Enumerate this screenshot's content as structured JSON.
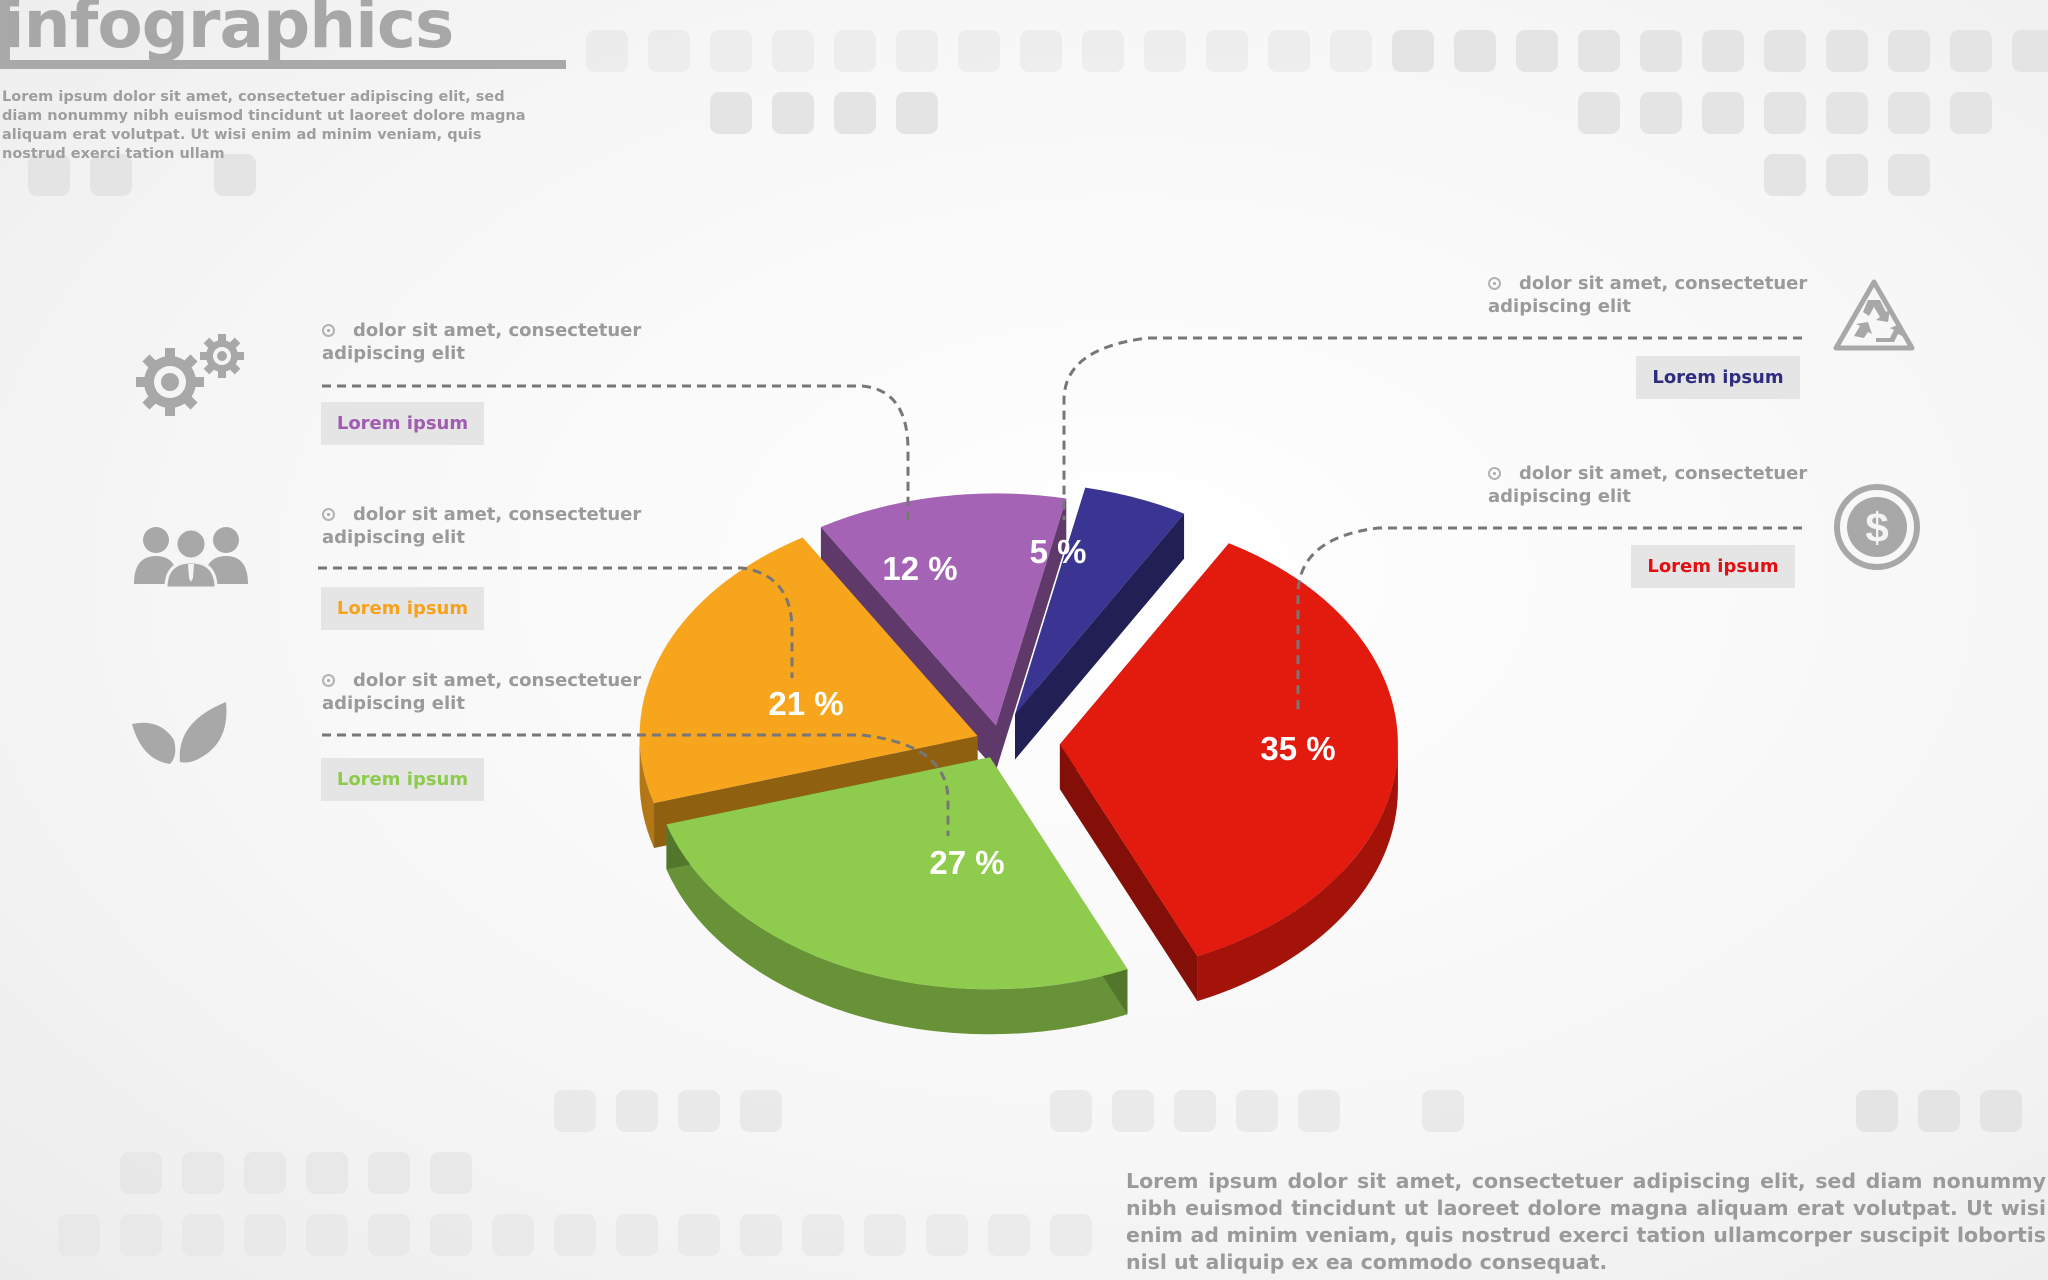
{
  "header": {
    "title": "infographics",
    "intro": "Lorem ipsum dolor sit amet, consectetuer adipiscing elit, sed diam nonummy nibh euismod tincidunt ut laoreet dolore magna aliquam erat volutpat. Ut wisi enim ad minim veniam, quis nostrud exerci tation ullam"
  },
  "footer": {
    "text": "Lorem ipsum dolor sit amet, consectetuer adipiscing elit, sed diam nonummy nibh euismod tincidunt ut laoreet dolore magna aliquam erat volutpat. Ut wisi enim ad minim veniam, quis nostrud exerci tation ullamcorper suscipit lobortis nisl ut aliquip ex ea commodo consequat."
  },
  "callouts": [
    {
      "id": "purple",
      "desc": "dolor sit amet, consectetuer adipiscing elit",
      "label": "Lorem ipsum",
      "color": "#a05cb1",
      "icon": "gears-icon"
    },
    {
      "id": "orange",
      "desc": "dolor sit amet, consectetuer adipiscing elit",
      "label": "Lorem ipsum",
      "color": "#f6a21c",
      "icon": "people-icon"
    },
    {
      "id": "green",
      "desc": "dolor sit amet, consectetuer adipiscing elit",
      "label": "Lorem ipsum",
      "color": "#8ccb4b",
      "icon": "leaf-icon"
    },
    {
      "id": "navy",
      "desc": "dolor sit amet, consectetuer adipiscing elit",
      "label": "Lorem ipsum",
      "color": "#2f2d80",
      "icon": "recycle-icon"
    },
    {
      "id": "red",
      "desc": "dolor sit amet, consectetuer adipiscing elit",
      "label": "Lorem ipsum",
      "color": "#e30e12",
      "icon": "dollar-icon"
    }
  ],
  "chart_data": {
    "type": "pie",
    "style": "3d-exploded",
    "slices": [
      {
        "label": "35 %",
        "value": 35,
        "color": "#e31a0e"
      },
      {
        "label": "27 %",
        "value": 27,
        "color": "#8fcb4d"
      },
      {
        "label": "21 %",
        "value": 21,
        "color": "#f8a51e"
      },
      {
        "label": "12 %",
        "value": 12,
        "color": "#a463b5"
      },
      {
        "label": "5 %",
        "value": 5,
        "color": "#3a3593"
      }
    ]
  }
}
